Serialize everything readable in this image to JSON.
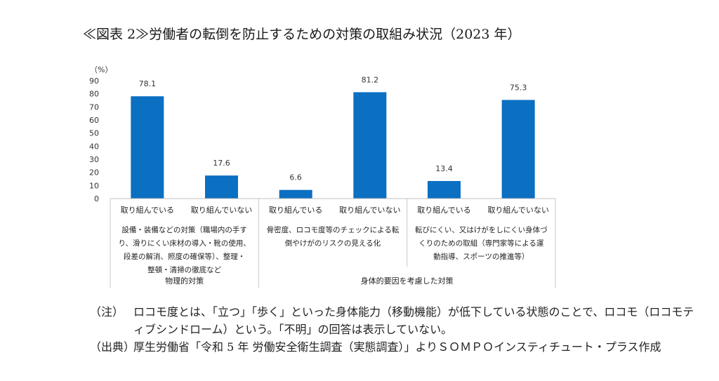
{
  "title": "≪図表 2≫労働者の転倒を防止するための対策の取組み状況（2023 年）",
  "chart_data": {
    "type": "bar",
    "unit_label": "（%）",
    "ylim": [
      0,
      90
    ],
    "yticks": [
      0,
      10,
      20,
      30,
      40,
      50,
      60,
      70,
      80,
      90
    ],
    "bar_color": "#0b6fc2",
    "bars": [
      {
        "label": "取り組んでいる",
        "value": 78.1
      },
      {
        "label": "取り組んでいない",
        "value": 17.6
      },
      {
        "label": "取り組んでいる",
        "value": 6.6
      },
      {
        "label": "取り組んでいない",
        "value": 81.2
      },
      {
        "label": "取り組んでいる",
        "value": 13.4
      },
      {
        "label": "取り組んでいない",
        "value": 75.3
      }
    ],
    "groups": [
      {
        "lines": [
          "設備・装備などの対策（職場内の手す",
          "り、滑りにくい床材の導入・靴の使用、",
          "段差の解消、照度の確保等）、整理・",
          "整頓・清掃の徹底など"
        ]
      },
      {
        "lines": [
          "骨密度、ロコモ度等のチェックによる転",
          "倒やけがのリスクの見える化"
        ]
      },
      {
        "lines": [
          "転びにくい、又はけがをしにくい身体づ",
          "くりのための取組（専門家等による運",
          "動指導、スポーツの推進等）"
        ]
      }
    ],
    "categories": [
      {
        "label": "物理的対策"
      },
      {
        "label": "身体的要因を考慮した対策"
      }
    ]
  },
  "notes": [
    {
      "label": "（注）",
      "text": "ロコモ度とは、「立つ」「歩く」といった身体能力（移動機能）が低下している状態のことで、ロコモ（ロコモティブシンドローム）という。「不明」の回答は表示していない。"
    },
    {
      "label": "（出典）",
      "text": "厚生労働省「令和 5 年 労働安全衛生調査（実態調査）」よりＳＯＭＰＯインスティチュート・プラス作成"
    }
  ]
}
